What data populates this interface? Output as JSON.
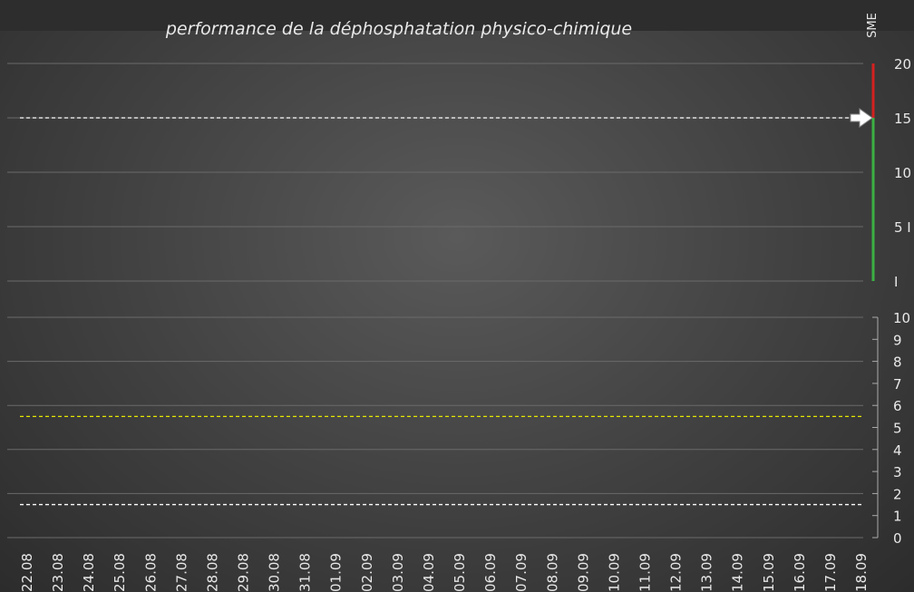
{
  "colors": {
    "grid": "#6a6a6a",
    "text": "#e8e8e8",
    "white_dash": "#ffffff",
    "yellow_dash": "#e6e600",
    "gauge_red": "#d42020",
    "gauge_green": "#3cb043"
  },
  "chart_data": [
    {
      "type": "line",
      "title": "performance de la déphosphatation physico-chimique",
      "ylabel": "SME",
      "ylim": [
        0,
        20
      ],
      "y_ticks": [
        "I",
        "5 I",
        "10",
        "15",
        "20"
      ],
      "y_tick_values": [
        0,
        5,
        10,
        15,
        20
      ],
      "grid": true,
      "reference_lines": [
        {
          "value": 15,
          "style": "dashed",
          "color": "#ffffff"
        }
      ],
      "gauge": {
        "green_range": [
          0,
          15
        ],
        "red_range": [
          15,
          20
        ],
        "marker_value": 15,
        "marker_icon": "right-arrow-icon"
      },
      "series": []
    },
    {
      "type": "line",
      "ylim": [
        0,
        10
      ],
      "y_ticks": [
        "0",
        "1",
        "2",
        "3",
        "4",
        "5",
        "6",
        "7",
        "8",
        "9",
        "10"
      ],
      "y_tick_values": [
        0,
        1,
        2,
        3,
        4,
        5,
        6,
        7,
        8,
        9,
        10
      ],
      "grid": true,
      "categories": [
        "22.08",
        "23.08",
        "24.08",
        "25.08",
        "26.08",
        "27.08",
        "28.08",
        "29.08",
        "30.08",
        "31.08",
        "01.09",
        "02.09",
        "03.09",
        "04.09",
        "05.09",
        "06.09",
        "07.09",
        "08.09",
        "09.09",
        "10.09",
        "11.09",
        "12.09",
        "13.09",
        "14.09",
        "15.09",
        "16.09",
        "17.09",
        "18.09"
      ],
      "reference_lines": [
        {
          "value": 5.5,
          "style": "dashed",
          "color": "#e6e600"
        },
        {
          "value": 1.5,
          "style": "dashed",
          "color": "#ffffff"
        }
      ],
      "series": []
    }
  ]
}
